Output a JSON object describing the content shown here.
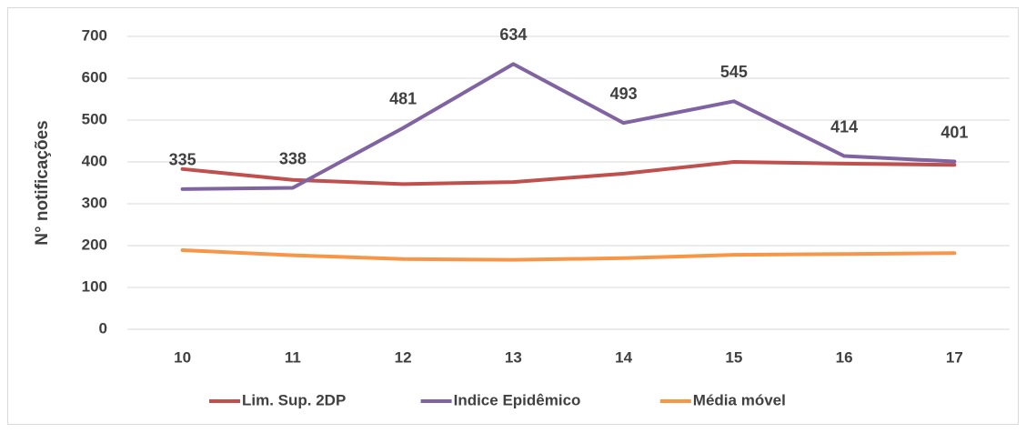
{
  "chart_data": {
    "type": "line",
    "y_label": "N° notificações",
    "categories": [
      "10",
      "11",
      "12",
      "13",
      "14",
      "15",
      "16",
      "17"
    ],
    "series": [
      {
        "name": "Lim. Sup. 2DP",
        "color": "#c0504d",
        "values": [
          383,
          357,
          347,
          352,
          372,
          400,
          396,
          393
        ],
        "data_labels": false
      },
      {
        "name": "Indice Epidêmico",
        "color": "#8064a2",
        "values": [
          335,
          338,
          481,
          634,
          493,
          545,
          414,
          401
        ],
        "data_labels": true
      },
      {
        "name": "Média móvel",
        "color": "#f79646",
        "values": [
          189,
          177,
          168,
          166,
          170,
          178,
          180,
          182
        ],
        "data_labels": false
      }
    ],
    "ylim": [
      0,
      700
    ],
    "yticks": [
      0,
      100,
      200,
      300,
      400,
      500,
      600,
      700
    ],
    "grid": true,
    "legend": "bottom"
  }
}
